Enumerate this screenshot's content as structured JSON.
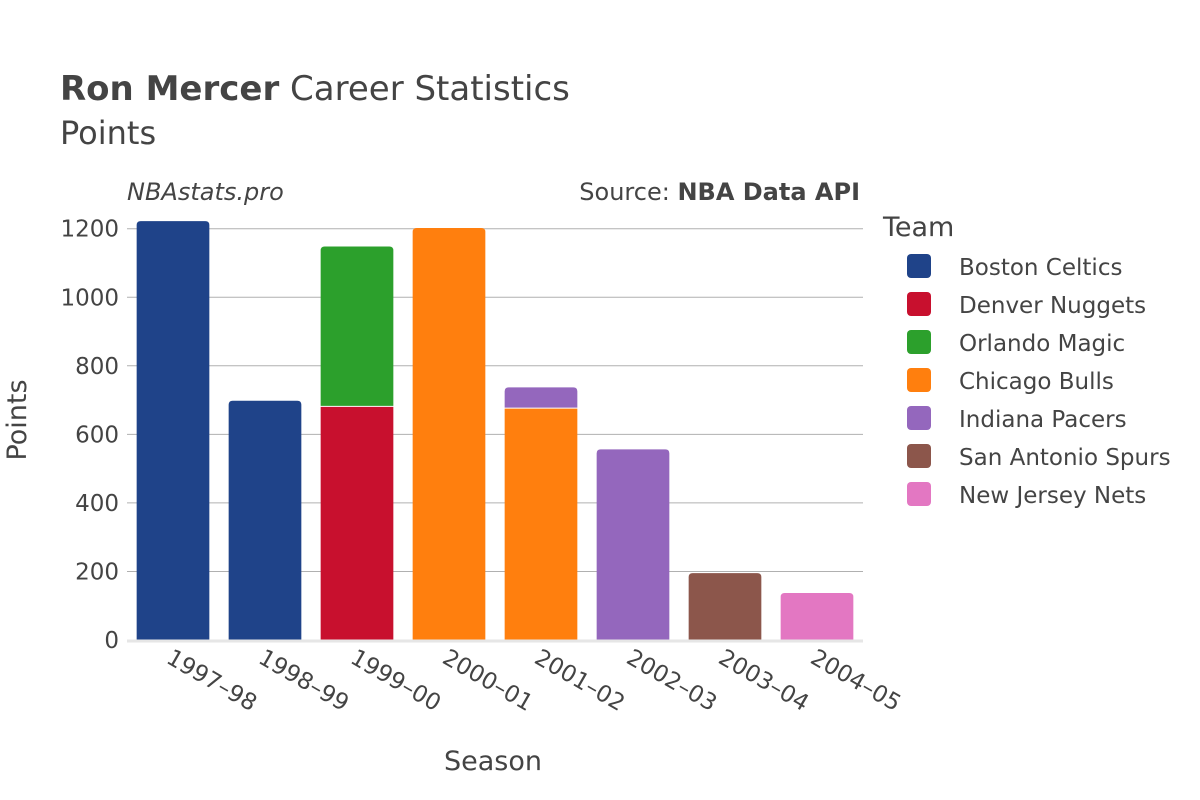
{
  "header": {
    "player_name": "Ron Mercer",
    "title_rest": "Career Statistics",
    "subtitle": "Points",
    "watermark": "NBAstats.pro",
    "source_prefix": "Source: ",
    "source_name": "NBA Data API"
  },
  "chart_data": {
    "type": "bar",
    "stacked": true,
    "xlabel": "Season",
    "ylabel": "Points",
    "ylim": [
      0,
      1240
    ],
    "yticks": [
      0,
      200,
      400,
      600,
      800,
      1000,
      1200
    ],
    "grid": true,
    "legend_title": "Team",
    "legend_position": "right",
    "categories": [
      "1997–98",
      "1998–99",
      "1999–00",
      "2000–01",
      "2001–02",
      "2002–03",
      "2003–04",
      "2004–05"
    ],
    "series": [
      {
        "name": "Boston Celtics",
        "color": "#1f4389",
        "values": [
          1222,
          698,
          0,
          0,
          0,
          0,
          0,
          0
        ]
      },
      {
        "name": "Denver Nuggets",
        "color": "#c8102e",
        "values": [
          0,
          0,
          680,
          0,
          0,
          0,
          0,
          0
        ]
      },
      {
        "name": "Orlando Magic",
        "color": "#2ca02c",
        "values": [
          0,
          0,
          468,
          0,
          0,
          0,
          0,
          0
        ]
      },
      {
        "name": "Chicago Bulls",
        "color": "#ff7f0e",
        "values": [
          0,
          0,
          0,
          1202,
          675,
          0,
          0,
          0
        ]
      },
      {
        "name": "Indiana Pacers",
        "color": "#9467bd",
        "values": [
          0,
          0,
          0,
          0,
          62,
          556,
          0,
          0
        ]
      },
      {
        "name": "San Antonio Spurs",
        "color": "#8c564b",
        "values": [
          0,
          0,
          0,
          0,
          0,
          0,
          195,
          0
        ]
      },
      {
        "name": "New Jersey Nets",
        "color": "#e377c2",
        "values": [
          0,
          0,
          0,
          0,
          0,
          0,
          0,
          137
        ]
      }
    ]
  }
}
